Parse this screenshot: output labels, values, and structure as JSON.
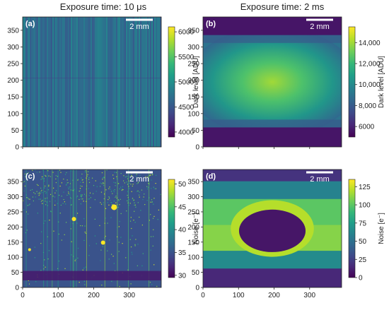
{
  "titles": {
    "left": "Exposure time: 10 μs",
    "right": "Exposure time: 2 ms"
  },
  "colors": {
    "viridis": [
      "#440154",
      "#482878",
      "#3e4a89",
      "#31688e",
      "#26828e",
      "#1f9e89",
      "#35b779",
      "#6ece58",
      "#b5de2b",
      "#fde725"
    ],
    "white": "#ffffff"
  },
  "chart_data": [
    {
      "type": "heatmap",
      "panel_label": "(a)",
      "scalebar_label": "2 mm",
      "x_ticks": [
        0,
        100,
        200,
        300
      ],
      "y_ticks": [
        0,
        50,
        100,
        150,
        200,
        250,
        300,
        350
      ],
      "xlim": [
        0,
        390
      ],
      "ylim": [
        0,
        390
      ],
      "colorbar": {
        "label": "Dark level [ADU]",
        "ticks": [
          "4000",
          "4500",
          "5000",
          "5500",
          "6000"
        ],
        "range": [
          3900,
          6100
        ]
      },
      "pattern": "uniform",
      "base_value": 4700,
      "show_x_tick_labels": false
    },
    {
      "type": "heatmap",
      "panel_label": "(b)",
      "scalebar_label": "2 mm",
      "x_ticks": [
        0,
        100,
        200,
        300
      ],
      "y_ticks": [
        0,
        50,
        100,
        150,
        200,
        250,
        300,
        350
      ],
      "xlim": [
        0,
        390
      ],
      "ylim": [
        0,
        390
      ],
      "colorbar": {
        "label": "Dark level [ADU]",
        "ticks": [
          "6000",
          "8,000",
          "10,000",
          "12,000",
          "14,000"
        ],
        "range": [
          5000,
          15500
        ]
      },
      "pattern": "warm-center",
      "base_value": 5600,
      "peak_value": 14000,
      "show_x_tick_labels": false
    },
    {
      "type": "heatmap",
      "panel_label": "(c)",
      "scalebar_label": "2 mm",
      "x_ticks": [
        0,
        100,
        200,
        300
      ],
      "y_ticks": [
        0,
        50,
        100,
        150,
        200,
        250,
        300,
        350
      ],
      "xlim": [
        0,
        390
      ],
      "ylim": [
        0,
        390
      ],
      "colorbar": {
        "label": "Noise [e⁻]",
        "ticks": [
          "30",
          "35",
          "40",
          "45",
          "50"
        ],
        "range": [
          29.5,
          51
        ]
      },
      "pattern": "noisy-uniform",
      "base_value": 35,
      "show_x_tick_labels": true
    },
    {
      "type": "heatmap",
      "panel_label": "(d)",
      "scalebar_label": "2 mm",
      "x_ticks": [
        0,
        100,
        200,
        300
      ],
      "y_ticks": [
        0,
        50,
        100,
        150,
        200,
        250,
        300,
        350
      ],
      "xlim": [
        0,
        390
      ],
      "ylim": [
        0,
        390
      ],
      "colorbar": {
        "label": "Noise [e⁻]",
        "ticks": [
          "0",
          "25",
          "50",
          "75",
          "100",
          "125"
        ],
        "range": [
          0,
          135
        ]
      },
      "pattern": "noise-ring",
      "base_value": 40,
      "ring_value": 120,
      "core_value": 8,
      "show_x_tick_labels": true
    }
  ]
}
